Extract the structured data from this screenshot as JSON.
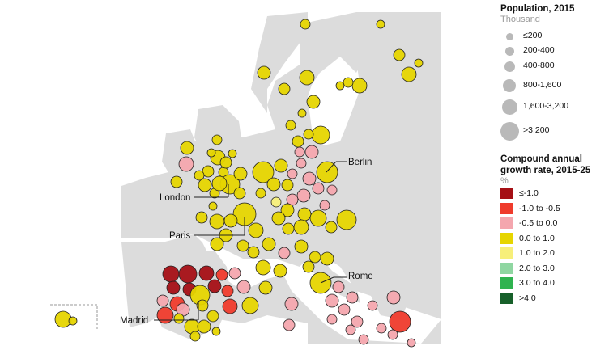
{
  "legend": {
    "size_title": "Population, 2015",
    "size_unit": "Thousand",
    "size_classes": [
      {
        "label": "≤200"
      },
      {
        "label": "200-400"
      },
      {
        "label": "400-800"
      },
      {
        "label": "800-1,600"
      },
      {
        "label": "1,600-3,200"
      },
      {
        "label": ">3,200"
      }
    ],
    "color_title_1": "Compound annual",
    "color_title_2": "growth rate, 2015-25",
    "color_unit": "%",
    "color_classes": [
      {
        "label": "≤-1.0",
        "color": "#a50f15"
      },
      {
        "label": "-1.0 to -0.5",
        "color": "#ef3b2c"
      },
      {
        "label": "-0.5 to 0.0",
        "color": "#f4a6ae"
      },
      {
        "label": "0.0 to 1.0",
        "color": "#e6d500"
      },
      {
        "label": "1.0 to 2.0",
        "color": "#f7ef7a"
      },
      {
        "label": "2.0 to 3.0",
        "color": "#8fd6a1"
      },
      {
        "label": "3.0 to 4.0",
        "color": "#2fb34f"
      },
      {
        "label": ">4.0",
        "color": "#17602a"
      }
    ]
  },
  "cities": {
    "berlin": "Berlin",
    "london": "London",
    "paris": "Paris",
    "rome": "Rome",
    "madrid": "Madrid"
  },
  "colors": {
    "land": "#dcdcdc",
    "sea": "#ffffff",
    "outline": "#222222"
  }
}
